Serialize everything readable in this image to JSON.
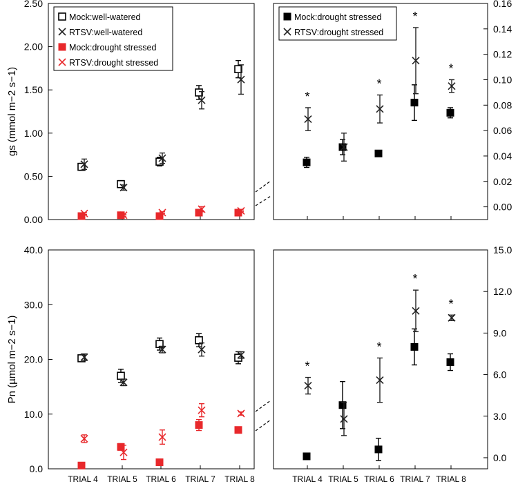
{
  "colors": {
    "mock": "#000000",
    "rtsv": "#222222",
    "drought": "#e8282b",
    "axes": "#000000"
  },
  "chart_data": [
    {
      "id": "gs-all",
      "type": "scatter",
      "ylabel": "gs (mmol m−2 s−1)",
      "ylim": [
        0,
        2.5
      ],
      "yticks": [
        "0.00",
        "0.50",
        "1.00",
        "1.50",
        "2.00",
        "2.50"
      ],
      "categories": [
        "TRIAL 4",
        "TRIAL 5",
        "TRIAL 6",
        "TRIAL 7",
        "TRIAL 8"
      ],
      "show_xlabels": false,
      "legend_position": "top-left",
      "series": [
        {
          "name": "Mock:well-watered",
          "marker": "open-square",
          "color": "#000000",
          "values": [
            0.61,
            0.41,
            0.67,
            1.47,
            1.74
          ],
          "err": [
            0.04,
            0.04,
            0.05,
            0.08,
            0.1
          ]
        },
        {
          "name": "RTSV:well-watered",
          "marker": "cross",
          "color": "#222222",
          "values": [
            0.64,
            0.37,
            0.71,
            1.38,
            1.62
          ],
          "err": [
            0.06,
            0.03,
            0.06,
            0.1,
            0.17
          ]
        },
        {
          "name": "Mock:drought stressed",
          "marker": "filled-square",
          "color": "#e8282b",
          "values": [
            0.04,
            0.05,
            0.04,
            0.08,
            0.08
          ],
          "err": [
            0.01,
            0.01,
            0.01,
            0.01,
            0.01
          ]
        },
        {
          "name": "RTSV:drought stressed",
          "marker": "cross",
          "color": "#e8282b",
          "values": [
            0.07,
            0.05,
            0.08,
            0.12,
            0.1
          ],
          "err": [
            0.01,
            0.01,
            0.01,
            0.03,
            0.01
          ]
        }
      ]
    },
    {
      "id": "gs-drought",
      "type": "scatter",
      "ylim": [
        -0.01,
        0.16
      ],
      "yticks": [
        "0.00",
        "0.02",
        "0.04",
        "0.06",
        "0.08",
        "0.10",
        "0.12",
        "0.14",
        "0.16"
      ],
      "categories": [
        "TRIAL 4",
        "TRIAL 5",
        "TRIAL 6",
        "TRIAL 7",
        "TRIAL 8"
      ],
      "show_xlabels": false,
      "legend_position": "top-left",
      "series": [
        {
          "name": "Mock:drought stressed",
          "marker": "filled-square",
          "color": "#000000",
          "values": [
            0.035,
            0.047,
            0.042,
            0.082,
            0.074
          ],
          "err": [
            0.004,
            0.006,
            0.002,
            0.014,
            0.004
          ]
        },
        {
          "name": "RTSV:drought stressed",
          "marker": "cross",
          "color": "#222222",
          "values": [
            0.069,
            0.047,
            0.077,
            0.115,
            0.095
          ],
          "err": [
            0.009,
            0.011,
            0.011,
            0.026,
            0.005
          ]
        }
      ],
      "annotations": [
        "*",
        "",
        "*",
        "*",
        "*"
      ]
    },
    {
      "id": "pn-all",
      "type": "scatter",
      "ylabel": "Pn (µmol m−2 s−1)",
      "ylim": [
        0,
        40
      ],
      "yticks": [
        "0.0",
        "10.0",
        "20.0",
        "30.0",
        "40.0"
      ],
      "categories": [
        "TRIAL 4",
        "TRIAL 5",
        "TRIAL 6",
        "TRIAL 7",
        "TRIAL 8"
      ],
      "show_xlabels": true,
      "series": [
        {
          "name": "Mock:well-watered",
          "marker": "open-square",
          "color": "#000000",
          "values": [
            20.2,
            17.0,
            22.8,
            23.5,
            20.3
          ],
          "err": [
            0.6,
            1.2,
            1.1,
            1.2,
            1.1
          ]
        },
        {
          "name": "RTSV:well-watered",
          "marker": "cross",
          "color": "#222222",
          "values": [
            20.4,
            15.8,
            21.8,
            21.8,
            20.8
          ],
          "err": [
            0.6,
            0.6,
            0.6,
            1.2,
            0.6
          ]
        },
        {
          "name": "Mock:drought stressed",
          "marker": "filled-square",
          "color": "#e8282b",
          "values": [
            0.6,
            4.0,
            1.2,
            8.0,
            7.1
          ],
          "err": [
            0.3,
            0.6,
            0.3,
            1.0,
            0.5
          ]
        },
        {
          "name": "RTSV:drought stressed",
          "marker": "cross",
          "color": "#e8282b",
          "values": [
            5.5,
            3.0,
            5.8,
            10.7,
            10.1
          ],
          "err": [
            0.7,
            1.3,
            1.3,
            1.2,
            0.3
          ]
        }
      ]
    },
    {
      "id": "pn-drought",
      "type": "scatter",
      "ylim": [
        -0.8,
        15
      ],
      "yticks": [
        "0.0",
        "3.0",
        "6.0",
        "9.0",
        "12.0",
        "15.0"
      ],
      "categories": [
        "TRIAL 4",
        "TRIAL 5",
        "TRIAL 6",
        "TRIAL 7",
        "TRIAL 8"
      ],
      "show_xlabels": true,
      "series": [
        {
          "name": "Mock:drought stressed",
          "marker": "filled-square",
          "color": "#000000",
          "values": [
            0.1,
            3.8,
            0.6,
            8.0,
            6.9
          ],
          "err": [
            0.2,
            1.7,
            0.8,
            1.3,
            0.6
          ]
        },
        {
          "name": "RTSV:drought stressed",
          "marker": "cross",
          "color": "#222222",
          "values": [
            5.2,
            2.8,
            5.6,
            10.6,
            10.1
          ],
          "err": [
            0.6,
            1.2,
            1.6,
            1.5,
            0.2
          ]
        }
      ],
      "annotations": [
        "*",
        "",
        "*",
        "*",
        "*"
      ]
    }
  ]
}
